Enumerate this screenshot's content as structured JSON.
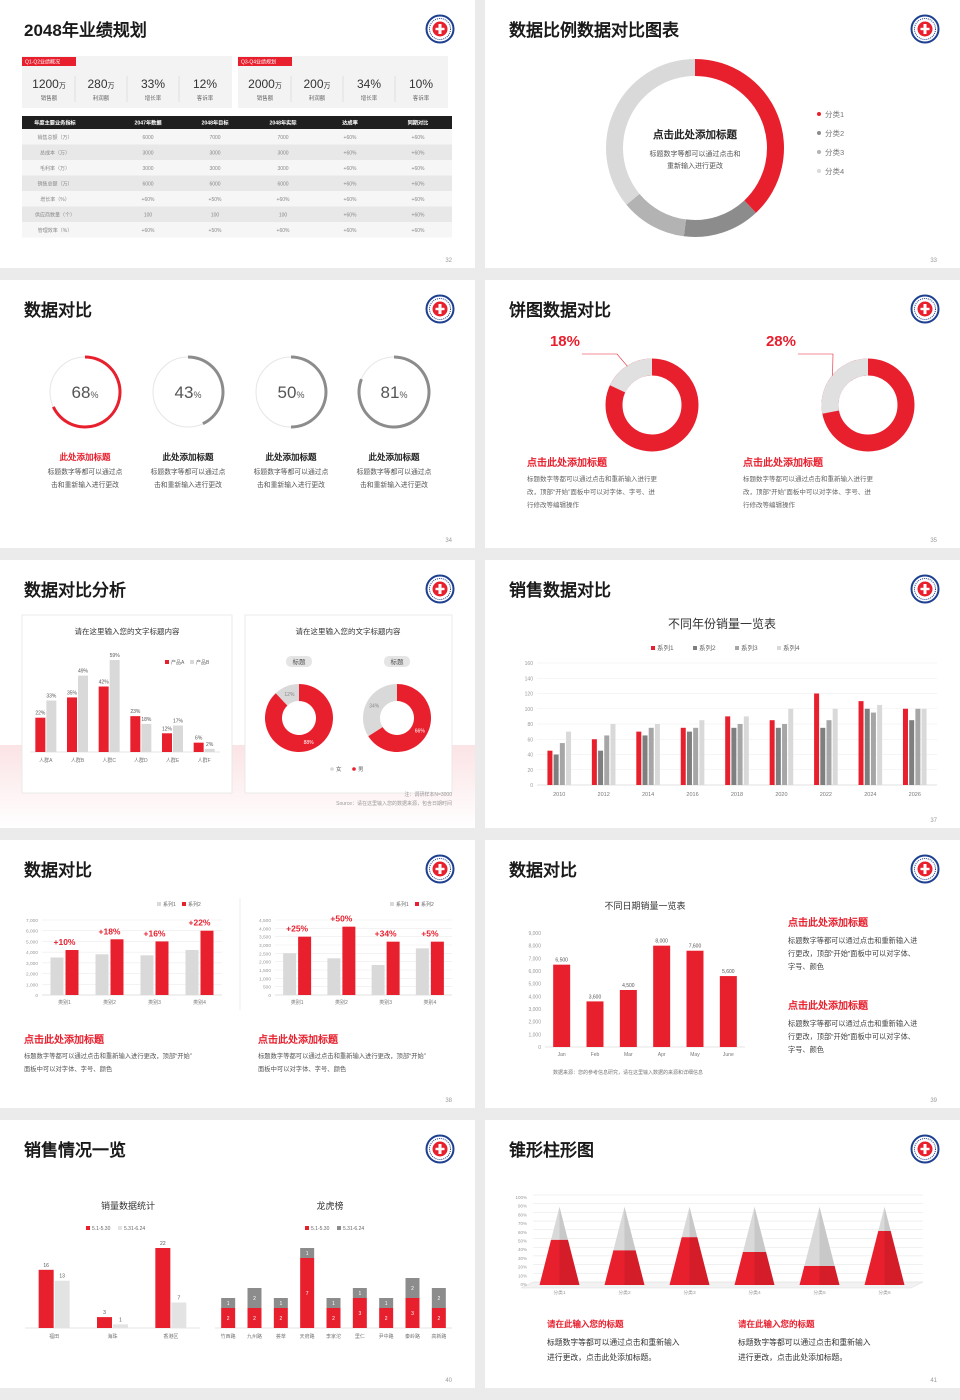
{
  "slides": [
    {
      "title": "2048年业绩规划",
      "page": "32",
      "panels": [
        {
          "tag": "Q1-Q2业绩概况",
          "kpis": [
            {
              "value": "1200",
              "unit": "万",
              "label": "销售额"
            },
            {
              "value": "280",
              "unit": "万",
              "label": "利润额"
            },
            {
              "value": "33%",
              "label": "增长率"
            },
            {
              "value": "12%",
              "label": "客诉率"
            }
          ]
        },
        {
          "tag": "Q3-Q4业绩规划",
          "kpis": [
            {
              "value": "2000",
              "unit": "万",
              "label": "销售额"
            },
            {
              "value": "200",
              "unit": "万",
              "label": "利润额"
            },
            {
              "value": "34%",
              "label": "增长率"
            },
            {
              "value": "10%",
              "label": "客诉率"
            }
          ]
        }
      ],
      "table": {
        "header": [
          "年度主要业务指标",
          "2047年数据",
          "2048年目标",
          "2048年实际",
          "达成率",
          "同期对比"
        ],
        "rows": [
          [
            "销售总额（万）",
            "6000",
            "7000",
            "7000",
            "+60%",
            "+60%"
          ],
          [
            "总成本（万）",
            "3000",
            "3000",
            "3000",
            "+60%",
            "+60%"
          ],
          [
            "毛利率（万）",
            "3000",
            "3000",
            "3000",
            "+60%",
            "+60%"
          ],
          [
            "销售总额（万）",
            "6000",
            "6000",
            "6000",
            "+60%",
            "+60%"
          ],
          [
            "增长率（%）",
            "+60%",
            "+50%",
            "+60%",
            "+60%",
            "+60%"
          ],
          [
            "供应商数量（个）",
            "100",
            "100",
            "100",
            "+60%",
            "+60%"
          ],
          [
            "管理效率（%）",
            "+60%",
            "+50%",
            "+60%",
            "+60%",
            "+60%"
          ]
        ]
      }
    },
    {
      "title": "数据比例数据对比图表",
      "page": "33",
      "chart": {
        "type": "donut",
        "categories": [
          "分类1",
          "分类2",
          "分类3",
          "分类4"
        ],
        "values": [
          38,
          14,
          12,
          36
        ],
        "colors": [
          "#e8202e",
          "#8c8c8c",
          "#b3b3b3",
          "#d9d9d9"
        ]
      },
      "center": {
        "title": "点击此处添加标题",
        "text": [
          "标题数字等都可以通过点击和",
          "重新输入进行更改"
        ]
      }
    },
    {
      "title": "数据对比",
      "page": "34",
      "items": [
        {
          "value": 68,
          "value_label": "68",
          "unit": "%",
          "color": "#e8202e",
          "title_color": "#e8202e",
          "title": "此处添加标题",
          "text": [
            "标题数字等都可以通过点",
            "击和重新输入进行更改"
          ]
        },
        {
          "value": 43,
          "value_label": "43",
          "unit": "%",
          "color": "#8c8c8c",
          "title_color": "#222222",
          "title": "此处添加标题",
          "text": [
            "标题数字等都可以通过点",
            "击和重新输入进行更改"
          ]
        },
        {
          "value": 50,
          "value_label": "50",
          "unit": "%",
          "color": "#8c8c8c",
          "title_color": "#222222",
          "title": "此处添加标题",
          "text": [
            "标题数字等都可以通过点",
            "击和重新输入进行更改"
          ]
        },
        {
          "value": 81,
          "value_label": "81",
          "unit": "%",
          "color": "#8c8c8c",
          "title_color": "#222222",
          "title": "此处添加标题",
          "text": [
            "标题数字等都可以通过点",
            "击和重新输入进行更改"
          ]
        }
      ]
    },
    {
      "title": "饼图数据对比",
      "page": "35",
      "items": [
        {
          "value": 18,
          "value_label": "18%",
          "title": "点击此处添加标题",
          "text": [
            "标题数字等都可以通过点击和重新输入进行更",
            "改，顶部“开始”面板中可以对字体、字号、进",
            "行修改等编辑操作"
          ]
        },
        {
          "value": 28,
          "value_label": "28%",
          "title": "点击此处添加标题",
          "text": [
            "标题数字等都可以通过点击和重新输入进行更",
            "改，顶部“开始”面板中可以对字体、字号、进",
            "行修改等编辑操作"
          ]
        }
      ]
    },
    {
      "title": "数据对比分析",
      "page": "36",
      "left": {
        "title": "请在这里输入您的文字标题内容",
        "chart": {
          "type": "bar",
          "categories": [
            "人群A",
            "人群B",
            "人群C",
            "人群D",
            "人群E",
            "人群F"
          ],
          "series": [
            {
              "name": "产品A",
              "color": "#e8202e",
              "values": [
                22,
                35,
                42,
                23,
                12,
                6
              ],
              "value_labels": [
                "22%",
                "35%",
                "42%",
                "23%",
                "12%",
                "6%"
              ]
            },
            {
              "name": "产品B",
              "color": "#d9d9d9",
              "values": [
                33,
                49,
                59,
                18,
                17,
                2
              ],
              "value_labels": [
                "33%",
                "49%",
                "59%",
                "18%",
                "17%",
                "2%"
              ]
            }
          ]
        }
      },
      "right": {
        "title": "请在这里输入您的文字标题内容",
        "legend": [
          "女",
          "男"
        ],
        "colors": [
          "#d9d9d9",
          "#e8202e"
        ],
        "charts": [
          {
            "type": "donut",
            "tag": "标题",
            "values": [
              12,
              88
            ],
            "value_labels": [
              "12%",
              "88%"
            ]
          },
          {
            "type": "donut",
            "tag": "标题",
            "values": [
              34,
              66
            ],
            "value_labels": [
              "34%",
              "66%"
            ]
          }
        ]
      },
      "notes": [
        "注：调研样本N=3000",
        "Source：请在这里输入您的数据来源，包含日期时间"
      ]
    },
    {
      "title": "销售数据对比",
      "page": "37",
      "chart": {
        "type": "bar",
        "title": "不同年份销量一览表",
        "categories": [
          "2010",
          "2012",
          "2014",
          "2016",
          "2018",
          "2020",
          "2022",
          "2024",
          "2026"
        ],
        "series": [
          {
            "name": "系列1",
            "color": "#e8202e",
            "values": [
              45,
              60,
              70,
              75,
              90,
              85,
              120,
              110,
              100
            ]
          },
          {
            "name": "系列2",
            "color": "#7f7f7f",
            "values": [
              40,
              45,
              65,
              70,
              75,
              75,
              75,
              100,
              85
            ]
          },
          {
            "name": "系列3",
            "color": "#a6a6a6",
            "values": [
              55,
              65,
              75,
              75,
              80,
              80,
              85,
              95,
              100
            ]
          },
          {
            "name": "系列4",
            "color": "#d9d9d9",
            "values": [
              70,
              80,
              80,
              85,
              90,
              100,
              100,
              105,
              100
            ]
          }
        ],
        "ylim": [
          0,
          160
        ],
        "yticks": [
          0,
          20,
          40,
          60,
          80,
          100,
          120,
          140,
          160
        ],
        "grid": true
      }
    },
    {
      "title": "数据对比",
      "page": "38",
      "panels": [
        {
          "chart": {
            "type": "bar",
            "categories": [
              "类别1",
              "类别2",
              "类别3",
              "类别4"
            ],
            "series": [
              {
                "name": "系列1",
                "color": "#d9d9d9",
                "values": [
                  3500,
                  3800,
                  3700,
                  4200
                ]
              },
              {
                "name": "系列2",
                "color": "#e8202e",
                "values": [
                  4200,
                  5200,
                  5000,
                  6000
                ]
              }
            ],
            "ylim": [
              0,
              7000
            ],
            "yticks": [
              0,
              {
                "value": 1000,
                "label": "1,000"
              },
              {
                "value": 2000,
                "label": "2,000"
              },
              {
                "value": 3000,
                "label": "3,000"
              },
              {
                "value": 4000,
                "label": "4,000"
              },
              {
                "value": 5000,
                "label": "5,000"
              },
              {
                "value": 6000,
                "label": "6,000"
              },
              {
                "value": 7000,
                "label": "7,000"
              }
            ],
            "grid": true,
            "annotations": [
              "+10%",
              "+18%",
              "+16%",
              "+22%"
            ]
          },
          "title": "点击此处添加标题",
          "text": [
            "标题数字等都可以通过点击和重新输入进行更改，顶部“开始”",
            "面板中可以对字体、字号、颜色"
          ]
        },
        {
          "chart": {
            "type": "bar",
            "categories": [
              "类别1",
              "类别2",
              "类别3",
              "类别4"
            ],
            "series": [
              {
                "name": "系列1",
                "color": "#d9d9d9",
                "values": [
                  2500,
                  2200,
                  1800,
                  2800
                ]
              },
              {
                "name": "系列2",
                "color": "#e8202e",
                "values": [
                  3500,
                  4100,
                  3200,
                  3200
                ]
              }
            ],
            "ylim": [
              0,
              4500
            ],
            "yticks": [
              0,
              500,
              {
                "value": 1000,
                "label": "1,000"
              },
              {
                "value": 1500,
                "label": "1,500"
              },
              {
                "value": 2000,
                "label": "2,000"
              },
              {
                "value": 2500,
                "label": "2,500"
              },
              {
                "value": 3000,
                "label": "3,000"
              },
              {
                "value": 3500,
                "label": "3,500"
              },
              {
                "value": 4000,
                "label": "4,000"
              },
              {
                "value": 4500,
                "label": "4,500"
              }
            ],
            "grid": true,
            "annotations": [
              "+25%",
              "+50%",
              "+34%",
              "+5%"
            ]
          },
          "title": "点击此处添加标题",
          "text": [
            "标题数字等都可以通过点击和重新输入进行更改，顶部“开始”",
            "面板中可以对字体、字号、颜色"
          ]
        }
      ]
    },
    {
      "title": "数据对比",
      "page": "39",
      "chart": {
        "type": "bar",
        "title": "不同日期销量一览表",
        "categories": [
          "Jan",
          "Feb",
          "Mar",
          "Apr",
          "May",
          "June"
        ],
        "series": [
          {
            "color": "#e8202e",
            "values": [
              6500,
              3600,
              4500,
              8000,
              7600,
              5600
            ],
            "value_labels": [
              "6,500",
              "3,600",
              "4,500",
              "8,000",
              "7,600",
              "5,600"
            ]
          }
        ],
        "ylim": [
          0,
          9000
        ],
        "yticks": [
          0,
          {
            "value": 1000,
            "label": "1,000"
          },
          {
            "value": 2000,
            "label": "2,000"
          },
          {
            "value": 3000,
            "label": "3,000"
          },
          {
            "value": 4000,
            "label": "4,000"
          },
          {
            "value": 5000,
            "label": "5,000"
          },
          {
            "value": 6000,
            "label": "6,000"
          },
          {
            "value": 7000,
            "label": "7,000"
          },
          {
            "value": 8000,
            "label": "8,000"
          },
          {
            "value": 9000,
            "label": "9,000"
          }
        ]
      },
      "source": "数据来源：您的参考信息研究，请在这里输入数据的来源和详细信息",
      "blocks": [
        {
          "title": "点击此处添加标题",
          "text": [
            "标题数字等都可以通过点击和重新输入进",
            "行更改，顶部“开始”面板中可以对字体、",
            "字号、颜色"
          ]
        },
        {
          "title": "点击此处添加标题",
          "text": [
            "标题数字等都可以通过点击和重新输入进",
            "行更改，顶部“开始”面板中可以对字体、",
            "字号、颜色"
          ]
        }
      ]
    },
    {
      "title": "销售情况一览",
      "page": "40",
      "charts": [
        {
          "type": "bar",
          "title": "销量数据统计",
          "categories": [
            "福田",
            "海珠",
            "香港区"
          ],
          "series": [
            {
              "name": "5.1-5.30",
              "color": "#e8202e",
              "values": [
                16,
                3,
                22
              ]
            },
            {
              "name": "5.31-6.24",
              "color": "#e3e3e3",
              "values": [
                13,
                1,
                7
              ]
            }
          ]
        },
        {
          "type": "stacked-bar",
          "title": "龙虎榜",
          "categories": [
            "竹西路",
            "九州路",
            "荟萃",
            "天府路",
            "李家沱",
            "里仁",
            "尹中路",
            "秦岭路",
            "高新路"
          ],
          "series": [
            {
              "name": "5.1-5.30",
              "color": "#e8202e",
              "values": [
                2,
                2,
                2,
                7,
                2,
                3,
                2,
                3,
                2
              ]
            },
            {
              "name": "5.31-6.24",
              "color": "#8c8c8c",
              "values": [
                1,
                2,
                1,
                1,
                1,
                1,
                1,
                2,
                2
              ]
            }
          ]
        }
      ]
    },
    {
      "title": "锥形柱形图",
      "page": "41",
      "chart": {
        "type": "cone",
        "categories": [
          "分类1",
          "分类2",
          "分类3",
          "分类4",
          "分类5",
          "分类6"
        ],
        "series": [
          {
            "color": "#e8202e",
            "values": [
              52,
              40,
              55,
              38,
              22,
              62
            ]
          },
          {
            "color": "#d9d9d9",
            "values": [
              38,
              50,
              35,
              52,
              68,
              28
            ]
          }
        ],
        "ylim": [
          0,
          100
        ],
        "yticks": [
          {
            "value": 0,
            "label": "0%"
          },
          {
            "value": 10,
            "label": "10%"
          },
          {
            "value": 20,
            "label": "20%"
          },
          {
            "value": 30,
            "label": "30%"
          },
          {
            "value": 40,
            "label": "40%"
          },
          {
            "value": 50,
            "label": "50%"
          },
          {
            "value": 60,
            "label": "60%"
          },
          {
            "value": 70,
            "label": "70%"
          },
          {
            "value": 80,
            "label": "80%"
          },
          {
            "value": 90,
            "label": "90%"
          },
          {
            "value": 100,
            "label": "100%"
          }
        ],
        "grid": true
      },
      "blocks": [
        {
          "title": "请在此输入您的标题",
          "text": [
            "标题数字等都可以通过点击和重新输入",
            "进行更改，点击此处添加标题。"
          ]
        },
        {
          "title": "请在此输入您的标题",
          "text": [
            "标题数字等都可以通过点击和重新输入",
            "进行更改，点击此处添加标题。"
          ]
        }
      ]
    }
  ]
}
